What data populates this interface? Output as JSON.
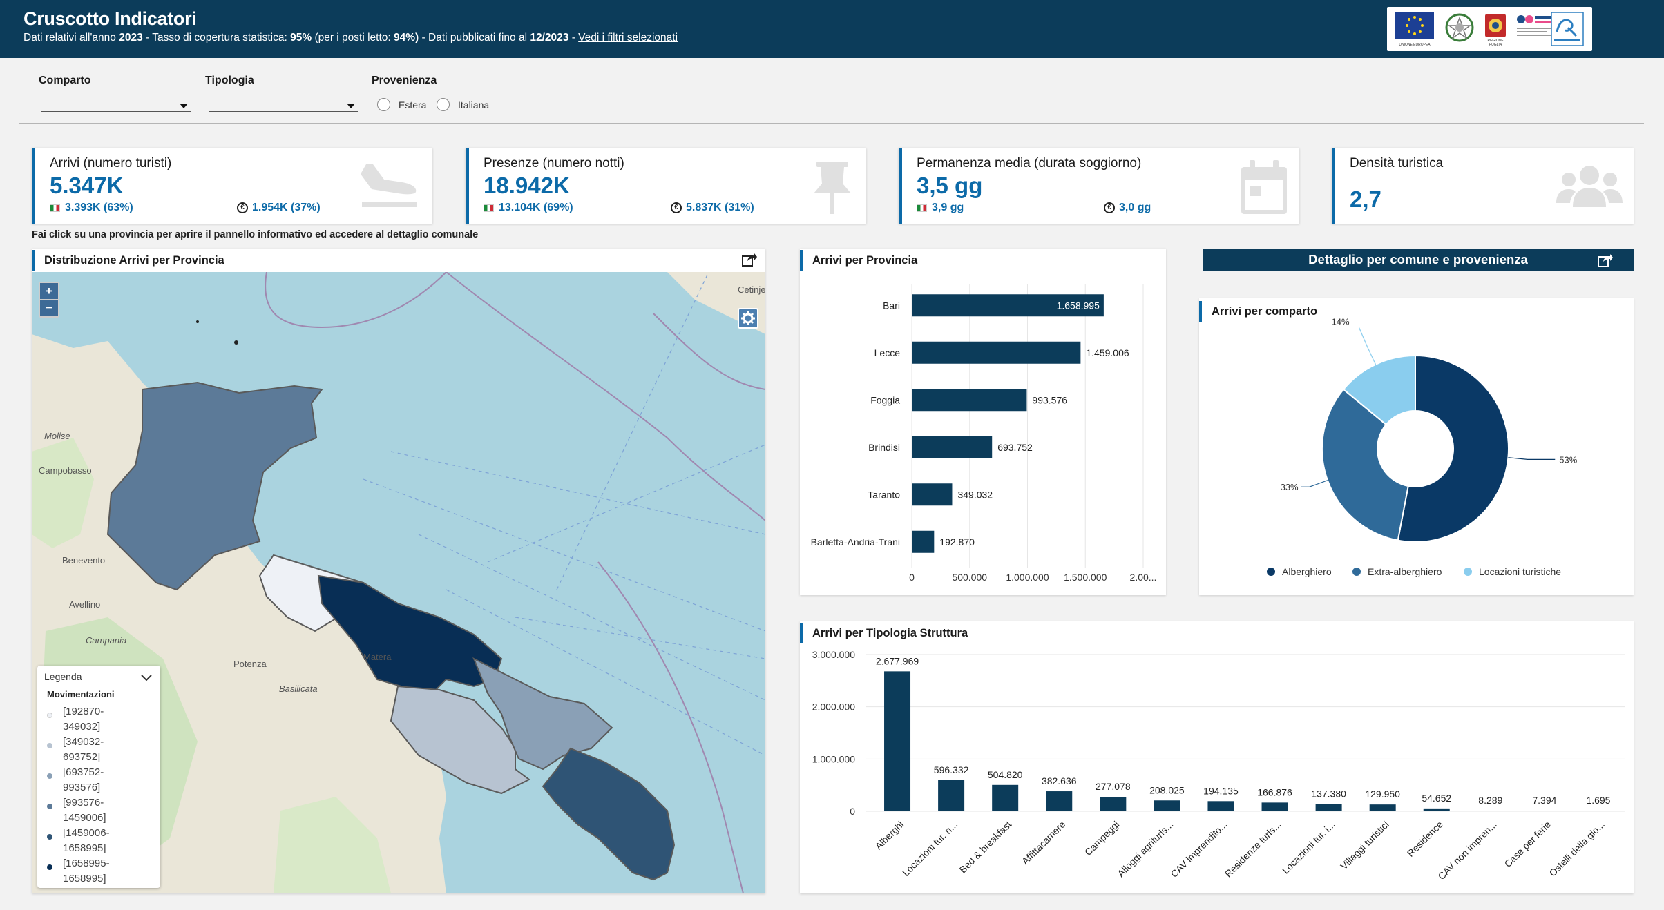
{
  "header": {
    "title": "Cruscotto Indicatori",
    "sub_1": "Dati relativi all'anno",
    "year": "2023",
    "sub_2": "- Tasso di copertura statistica:",
    "coverage": "95%",
    "sub_3": "(per i posti letto:",
    "coverage_beds": "94%)",
    "sub_4": "- Dati pubblicati fino al",
    "published": "12/2023",
    "sub_5": "-",
    "filters_link": "Vedi i filtri selezionati",
    "logos": [
      "UNIONE EUROPEA",
      "REGIONE PUGLIA"
    ]
  },
  "filters": {
    "comparto_label": "Comparto",
    "tipologia_label": "Tipologia",
    "provenienza_label": "Provenienza",
    "estera": "Estera",
    "italiana": "Italiana"
  },
  "kpis": {
    "arrivi": {
      "label": "Arrivi (numero turisti)",
      "value": "5.347K",
      "it": "3.393K (63%)",
      "foreign": "1.954K (37%)",
      "icon": "plane-arrival-icon"
    },
    "presenze": {
      "label": "Presenze (numero notti)",
      "value": "18.942K",
      "it": "13.104K (69%)",
      "foreign": "5.837K (31%)",
      "icon": "pushpin-icon"
    },
    "permanenza": {
      "label": "Permanenza media (durata soggiorno)",
      "value": "3,5 gg",
      "it": "3,9 gg",
      "foreign": "3,0 gg",
      "icon": "calendar-icon"
    },
    "densita": {
      "label": "Densità turistica",
      "value": "2,7",
      "icon": "users-icon"
    }
  },
  "hint": "Fai click su una provincia per aprire il pannello informativo ed accedere al dettaglio comunale",
  "map": {
    "title": "Distribuzione Arrivi per Provincia",
    "zoom_in": "+",
    "zoom_out": "−",
    "place_labels": [
      "Molise",
      "Campobasso",
      "Benevento",
      "Avellino",
      "Campania",
      "Potenza",
      "Basilicata",
      "Matera",
      "Cetinje"
    ],
    "legend": {
      "title": "Legenda",
      "heading": "Movimentazioni",
      "items": [
        {
          "label": "[192870-349032]",
          "color": "#eef1f6"
        },
        {
          "label": "[349032-693752]",
          "color": "#b7c3d1"
        },
        {
          "label": "[693752-993576]",
          "color": "#8aa0b6"
        },
        {
          "label": "[993576-1459006]",
          "color": "#5c7a98"
        },
        {
          "label": "[1459006-1658995]",
          "color": "#2f5475"
        },
        {
          "label": "[1658995-1658995]",
          "color": "#082e55"
        }
      ]
    }
  },
  "provincia_chart": {
    "title": "Arrivi per Provincia",
    "chart_data": {
      "type": "bar",
      "orientation": "horizontal",
      "categories": [
        "Bari",
        "Lecce",
        "Foggia",
        "Brindisi",
        "Taranto",
        "Barletta-Andria-Trani"
      ],
      "values": [
        1658995,
        1459006,
        993576,
        693752,
        349032,
        192870
      ],
      "value_labels": [
        "1.658.995",
        "1.459.006",
        "993.576",
        "693.752",
        "349.032",
        "192.870"
      ],
      "xticks": [
        "0",
        "500.000",
        "1.000.000",
        "1.500.000",
        "2.00..."
      ],
      "xlim": [
        0,
        2000000
      ],
      "color": "#0c3c5a"
    }
  },
  "dettaglio_button": "Dettaglio per comune e provenienza",
  "comparto_chart": {
    "title": "Arrivi per comparto",
    "chart_data": {
      "type": "pie",
      "donut": true,
      "labels": [
        "Alberghiero",
        "Extra-alberghiero",
        "Locazioni turistiche"
      ],
      "values": [
        53,
        33,
        14
      ],
      "value_labels": [
        "53%",
        "33%",
        "14%"
      ],
      "colors": [
        "#0a3966",
        "#2f6a99",
        "#8acdee"
      ]
    }
  },
  "tipologia_chart": {
    "title": "Arrivi per Tipologia Struttura",
    "chart_data": {
      "type": "bar",
      "categories": [
        "Alberghi",
        "Locazioni tur. n...",
        "Bed & breakfast",
        "Affittacamere",
        "Campeggi",
        "Alloggi agrituris...",
        "CAV imprendito...",
        "Residenze turis...",
        "Locazioni tur. i...",
        "Villaggi turistici",
        "Residence",
        "CAV non impren...",
        "Case per ferie",
        "Ostelli della gio..."
      ],
      "values": [
        2677969,
        596332,
        504820,
        382636,
        277078,
        208025,
        194135,
        166876,
        137380,
        129950,
        54652,
        8289,
        7394,
        1695
      ],
      "value_labels": [
        "2.677.969",
        "596.332",
        "504.820",
        "382.636",
        "277.078",
        "208.025",
        "194.135",
        "166.876",
        "137.380",
        "129.950",
        "54.652",
        "8.289",
        "7.394",
        "1.695"
      ],
      "yticks": [
        "0",
        "1.000.000",
        "2.000.000",
        "3.000.000"
      ],
      "ylim": [
        0,
        3000000
      ],
      "color": "#0c3c5a"
    }
  }
}
